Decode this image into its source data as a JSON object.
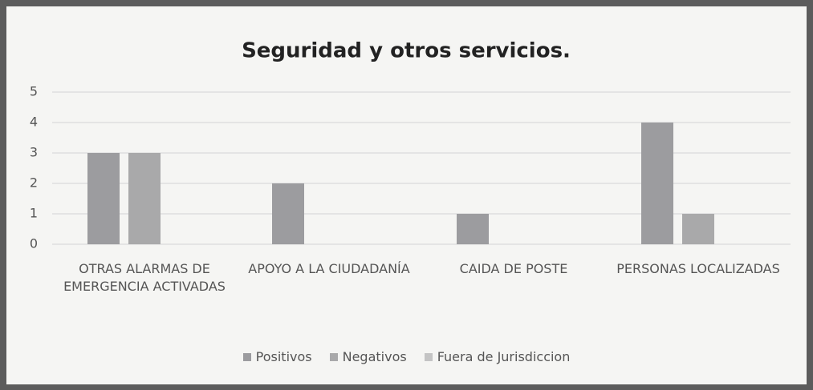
{
  "chart_data": {
    "type": "bar",
    "title": "Seguridad y otros servicios.",
    "categories": [
      "OTRAS ALARMAS DE EMERGENCIA ACTIVADAS",
      "APOYO A LA CIUDADANÍA",
      "CAIDA DE POSTE",
      "PERSONAS LOCALIZADAS"
    ],
    "series": [
      {
        "name": "Positivos",
        "color": "#9c9c9f",
        "values": [
          3,
          2,
          1,
          4
        ]
      },
      {
        "name": "Negativos",
        "color": "#a9a9aa",
        "values": [
          3,
          0,
          0,
          1
        ]
      },
      {
        "name": "Fuera de Jurisdiccion",
        "color": "#c4c4c4",
        "values": [
          0,
          0,
          0,
          0
        ]
      }
    ],
    "ylim": [
      0,
      5
    ],
    "yticks": [
      0,
      1,
      2,
      3,
      4,
      5
    ],
    "grid": true,
    "legend": "bottom"
  }
}
